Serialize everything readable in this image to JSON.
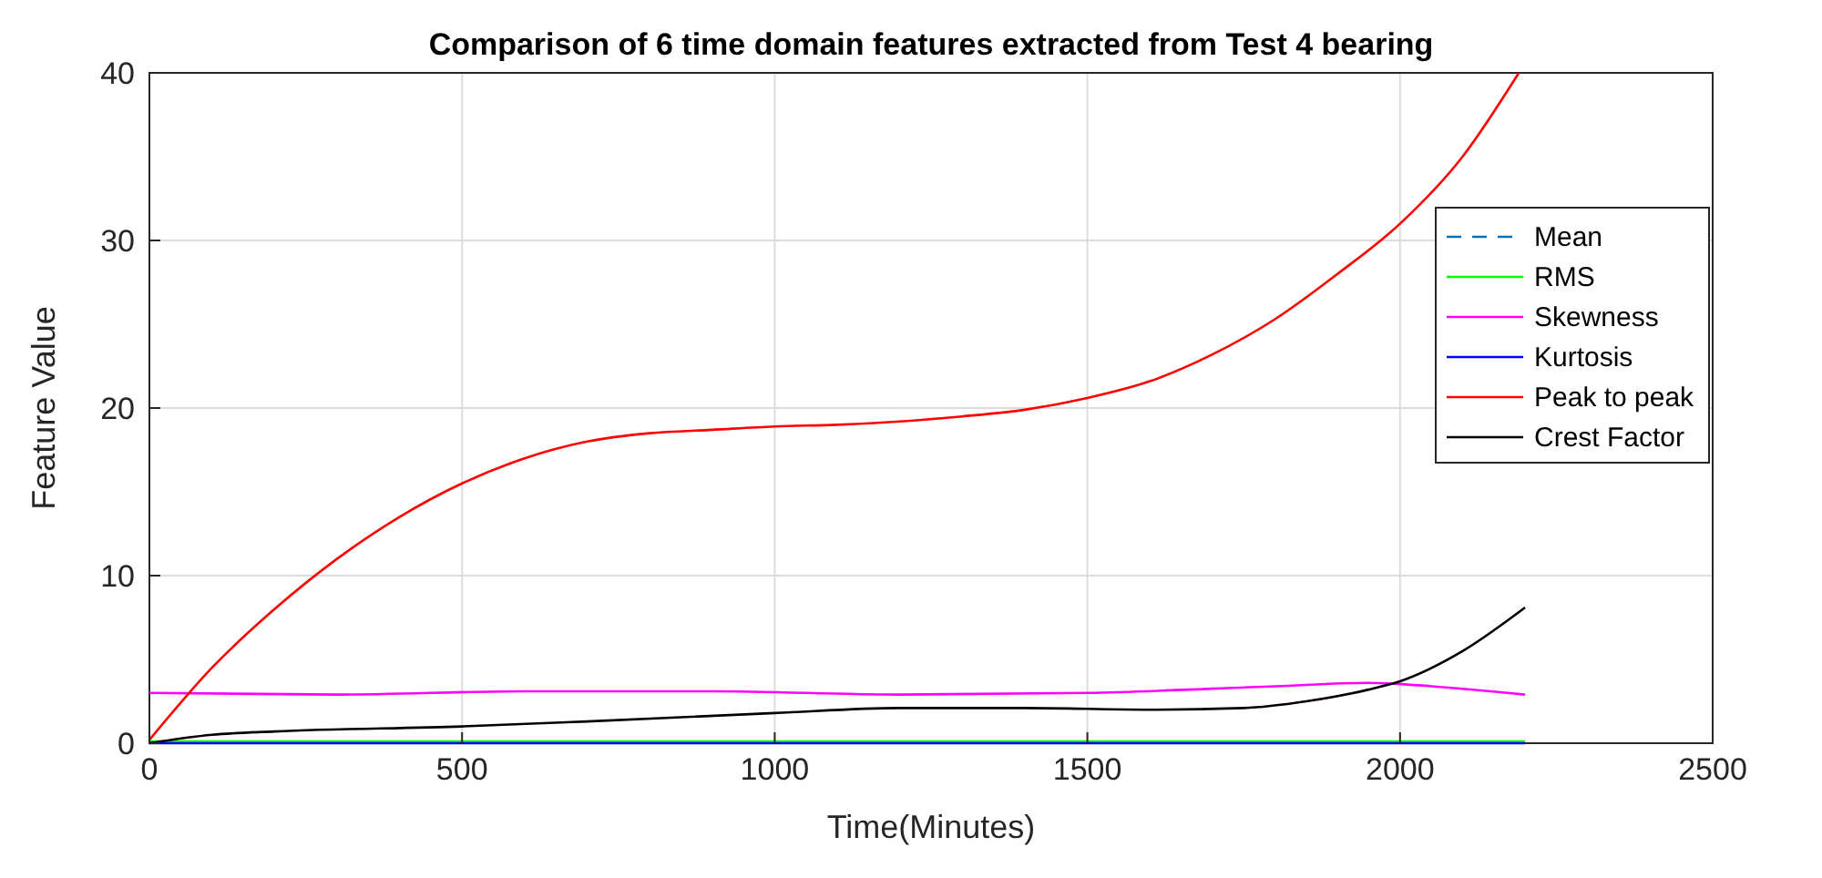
{
  "chart_data": {
    "type": "line",
    "title": "Comparison of 6 time domain features extracted from Test 4 bearing",
    "xlabel": "Time(Minutes)",
    "ylabel": "Feature Value",
    "xlim": [
      0,
      2500
    ],
    "xticks": [
      0,
      500,
      1000,
      1500,
      2000,
      2500
    ],
    "ylim": [
      0,
      40
    ],
    "yticks": [
      0,
      10,
      20,
      30,
      40
    ],
    "grid": true,
    "legend": "right",
    "series": [
      {
        "name": "Mean",
        "color": "#0072bd",
        "line_style": "dashed"
      },
      {
        "name": "RMS",
        "color": "#00ff00",
        "x": [
          0,
          2200
        ],
        "values": [
          0.1,
          0.1
        ]
      },
      {
        "name": "Skewness",
        "color": "#ff00ff",
        "x": [
          0,
          300,
          600,
          900,
          1200,
          1500,
          1800,
          1950,
          2050,
          2200
        ],
        "values": [
          3.0,
          2.9,
          3.1,
          3.1,
          2.9,
          3.0,
          3.4,
          3.6,
          3.4,
          2.9
        ]
      },
      {
        "name": "Kurtosis",
        "color": "#0000ff",
        "x": [
          0,
          2200
        ],
        "values": [
          0,
          0
        ]
      },
      {
        "name": "Peak to peak",
        "color": "#ff0000",
        "x": [
          0,
          100,
          200,
          300,
          400,
          500,
          600,
          700,
          800,
          900,
          1000,
          1100,
          1200,
          1300,
          1400,
          1500,
          1600,
          1700,
          1800,
          1900,
          2000,
          2100,
          2190
        ],
        "values": [
          0.2,
          4.5,
          8,
          11,
          13.5,
          15.5,
          17,
          18,
          18.5,
          18.7,
          18.9,
          19,
          19.2,
          19.5,
          19.9,
          20.6,
          21.6,
          23.2,
          25.3,
          28,
          31,
          35,
          40
        ]
      },
      {
        "name": "Crest Factor",
        "color": "#000000",
        "x": [
          0,
          100,
          200,
          500,
          700,
          1000,
          1200,
          1400,
          1600,
          1750,
          1850,
          1950,
          2000,
          2100,
          2200
        ],
        "values": [
          0,
          0.5,
          0.7,
          1.0,
          1.3,
          1.8,
          2.1,
          2.1,
          2.0,
          2.1,
          2.5,
          3.2,
          3.7,
          5.5,
          8.1
        ]
      }
    ]
  }
}
